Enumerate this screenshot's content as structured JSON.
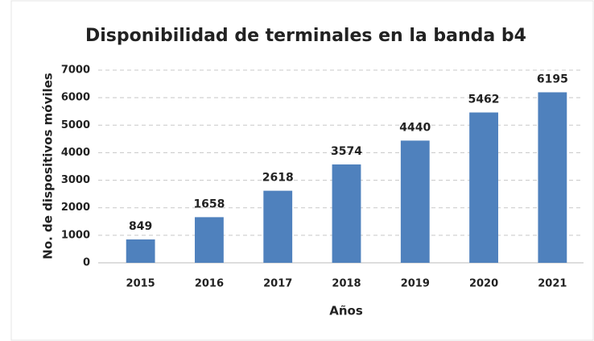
{
  "chart_data": {
    "type": "bar",
    "title": "Disponibilidad de terminales en la banda b4",
    "x_label": "Años",
    "y_label": "No. de dispositivos móviles",
    "categories": [
      "2015",
      "2016",
      "2017",
      "2018",
      "2019",
      "2020",
      "2021"
    ],
    "values": [
      849,
      1658,
      2618,
      3574,
      4440,
      5462,
      6195
    ],
    "color": "#4f81bd",
    "ylim": [
      0,
      7000
    ],
    "yticks": [
      0,
      1000,
      2000,
      3000,
      4000,
      5000,
      6000,
      7000
    ],
    "grid": true
  }
}
